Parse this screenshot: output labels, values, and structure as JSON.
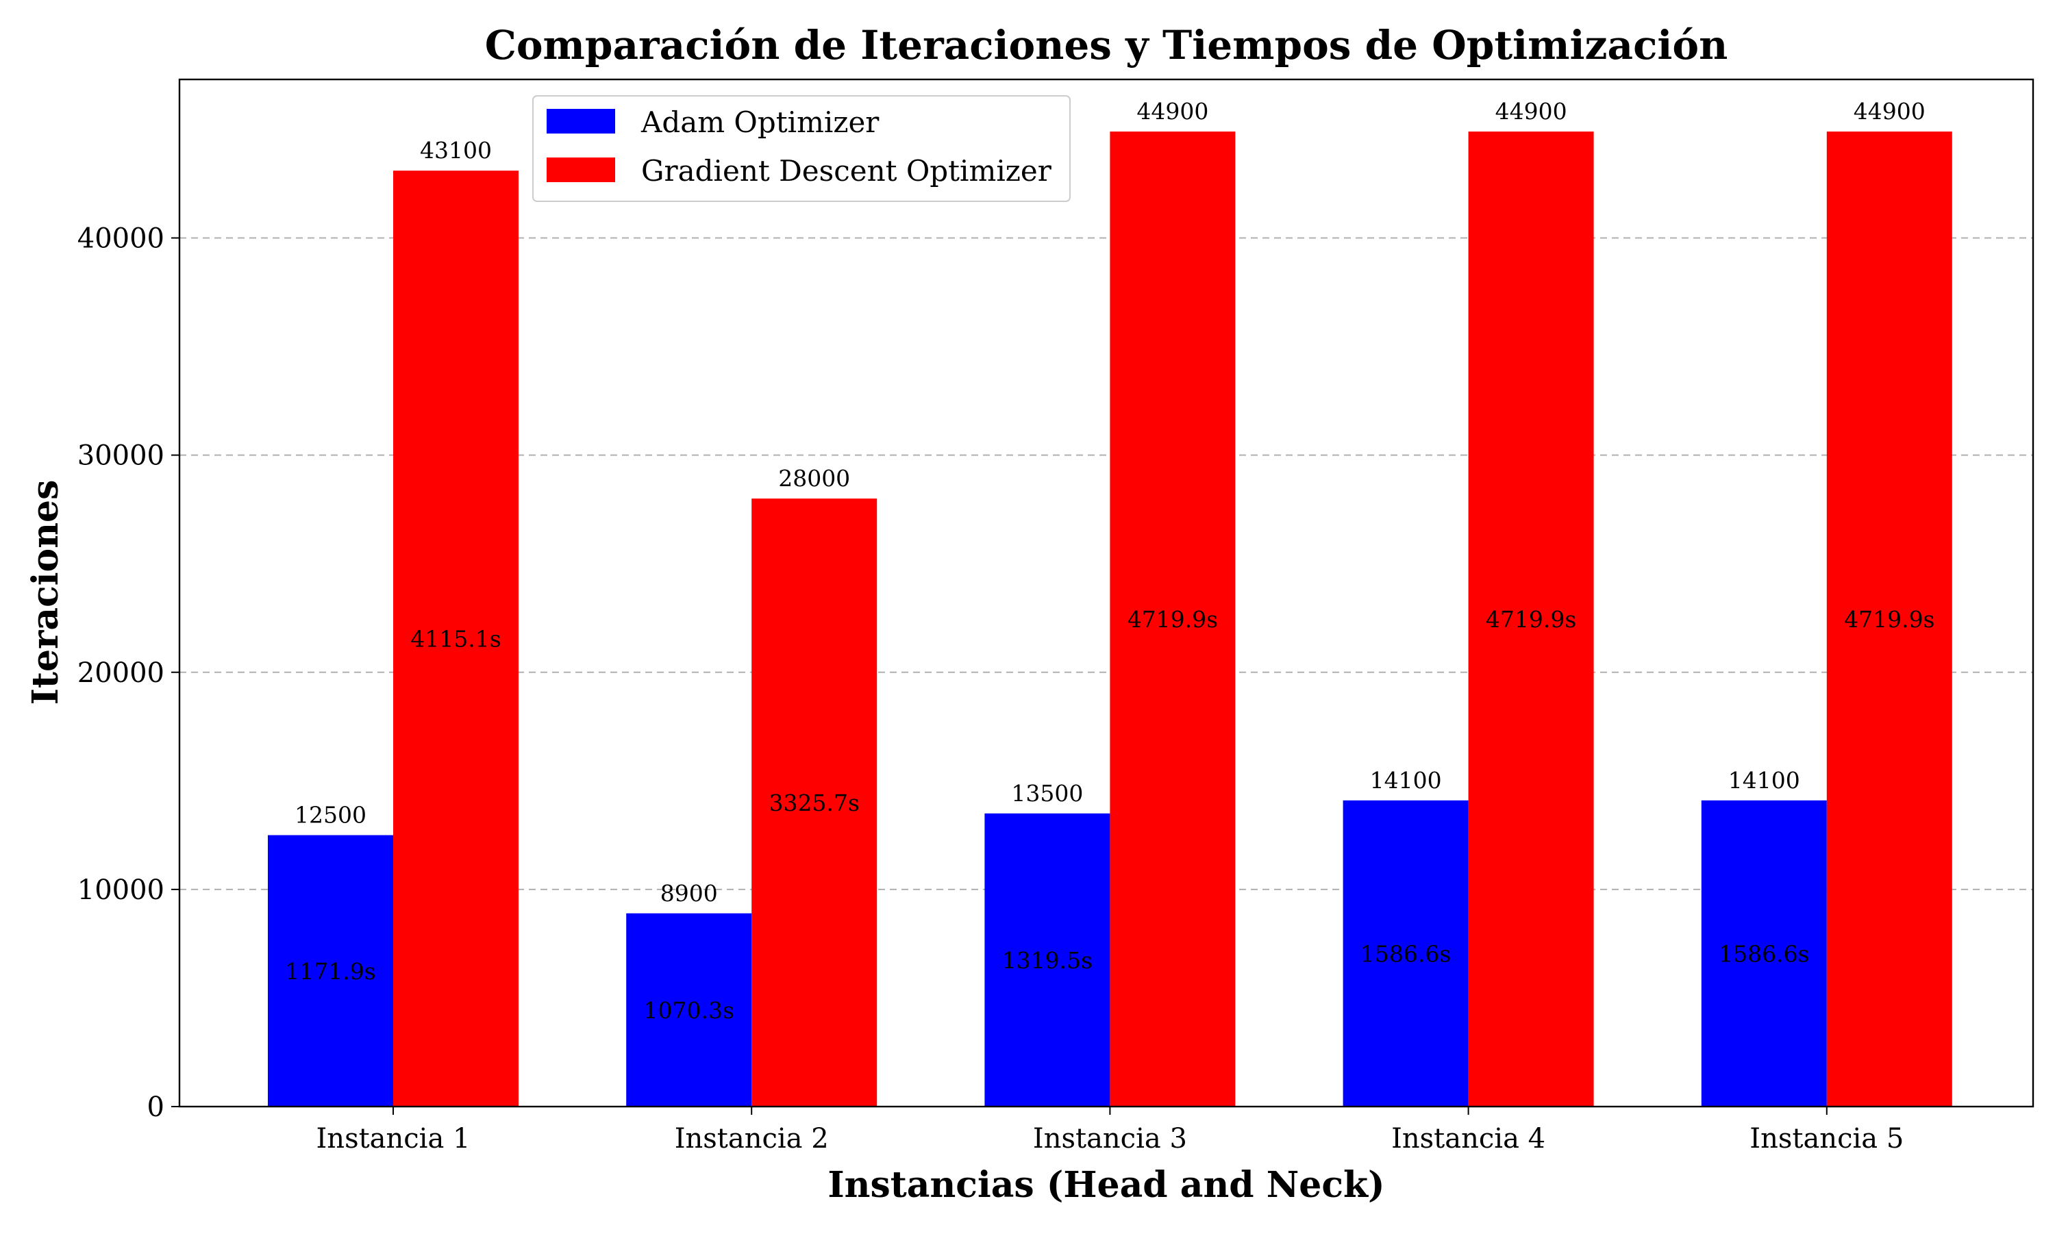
{
  "chart_data": {
    "type": "bar",
    "title": "Comparación de Iteraciones y Tiempos de Optimización",
    "xlabel": "Instancias (Head and Neck)",
    "ylabel": "Iteraciones",
    "categories": [
      "Instancia 1",
      "Instancia 2",
      "Instancia 3",
      "Instancia 4",
      "Instancia 5"
    ],
    "ylim": [
      0,
      47300
    ],
    "yticks": [
      0,
      10000,
      20000,
      30000,
      40000
    ],
    "ytick_labels": [
      "0",
      "10000",
      "20000",
      "30000",
      "40000"
    ],
    "grid": "y-dashed",
    "legend_position": "top-center",
    "series": [
      {
        "name": "Adam Optimizer",
        "color": "#0000ff",
        "values": [
          12500,
          8900,
          13500,
          14100,
          14100
        ],
        "value_labels": [
          "12500",
          "8900",
          "13500",
          "14100",
          "14100"
        ],
        "time_labels": [
          "1171.9s",
          "1070.3s",
          "1319.5s",
          "1586.6s",
          "1586.6s"
        ]
      },
      {
        "name": "Gradient Descent Optimizer",
        "color": "#ff0000",
        "values": [
          43100,
          28000,
          44900,
          44900,
          44900
        ],
        "value_labels": [
          "43100",
          "28000",
          "44900",
          "44900",
          "44900"
        ],
        "time_labels": [
          "4115.1s",
          "3325.7s",
          "4719.9s",
          "4719.9s",
          "4719.9s"
        ]
      }
    ]
  }
}
